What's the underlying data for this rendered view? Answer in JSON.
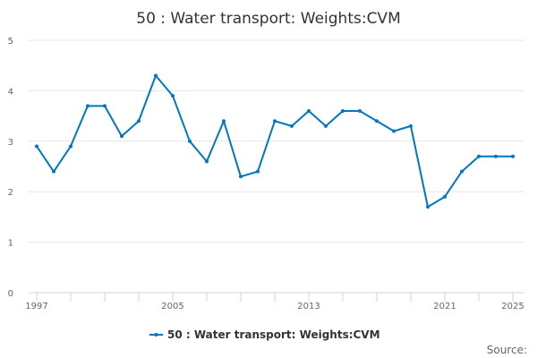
{
  "chart_data": {
    "type": "line",
    "title": "50 : Water transport: Weights:CVM",
    "xlabel": "",
    "ylabel": "",
    "x": [
      1997,
      1998,
      1999,
      2000,
      2001,
      2002,
      2003,
      2004,
      2005,
      2006,
      2007,
      2008,
      2009,
      2010,
      2011,
      2012,
      2013,
      2014,
      2015,
      2016,
      2017,
      2018,
      2019,
      2020,
      2021,
      2022,
      2023,
      2024,
      2025
    ],
    "series": [
      {
        "name": "50 : Water transport: Weights:CVM",
        "values": [
          2.9,
          2.4,
          2.9,
          3.7,
          3.7,
          3.1,
          3.4,
          4.3,
          3.9,
          3.0,
          2.6,
          3.4,
          2.3,
          2.4,
          3.4,
          3.3,
          3.6,
          3.3,
          3.6,
          3.6,
          3.4,
          3.2,
          3.3,
          1.7,
          1.9,
          2.4,
          2.7,
          2.7,
          2.7
        ]
      }
    ],
    "ylim": [
      0,
      5
    ],
    "xlim": [
      1997,
      2025
    ],
    "y_ticks": [
      "0",
      "1",
      "2",
      "3",
      "4",
      "5"
    ],
    "x_tick_labels": [
      "1997",
      "2005",
      "2013",
      "2021",
      "2025"
    ],
    "grid": true,
    "legend": "bottom-center",
    "color": "#0077c0"
  },
  "source_label": "Source:"
}
